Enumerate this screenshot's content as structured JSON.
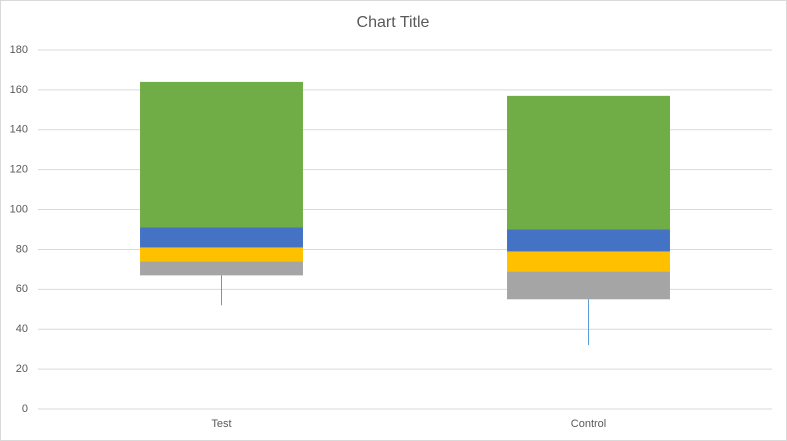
{
  "chart_data": {
    "type": "stacked_bar",
    "title": "Chart Title",
    "categories": [
      "Test",
      "Control"
    ],
    "series": [
      {
        "color": "none",
        "values": [
          67,
          55
        ],
        "errors_minus": [
          15,
          23
        ],
        "error_color": "#5b9bd5"
      },
      {
        "color": "#a5a5a5",
        "values": [
          7,
          14
        ]
      },
      {
        "color": "#ffc000",
        "values": [
          7,
          10
        ]
      },
      {
        "color": "#4472c4",
        "values": [
          10,
          11
        ]
      },
      {
        "color": "#70ad47",
        "values": [
          73,
          67
        ]
      }
    ],
    "ylim": [
      0,
      180
    ],
    "yticks": [
      0,
      20,
      40,
      60,
      80,
      100,
      120,
      140,
      160,
      180
    ],
    "grid": true
  }
}
